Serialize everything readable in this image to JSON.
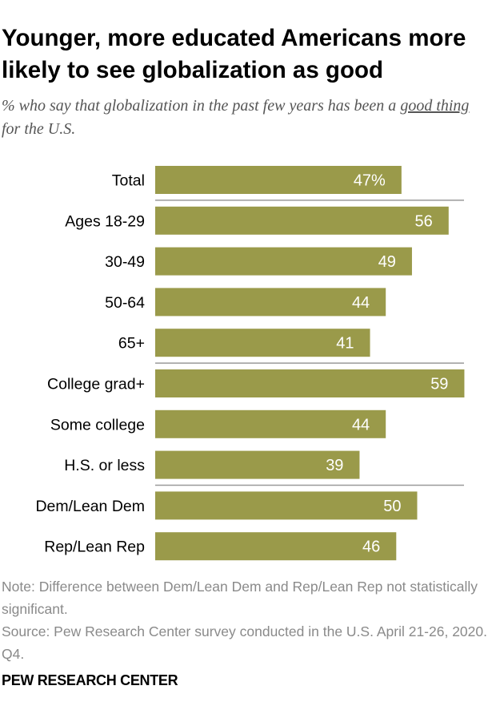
{
  "title": "Younger, more educated Americans more likely to see globalization as good",
  "subtitle": {
    "before": "% who say that globalization in the past few years has been a ",
    "emphasis": "good thing",
    "after": " for the U.S."
  },
  "note": "Note: Difference between Dem/Lean Dem and Rep/Lean Rep not statistically significant.",
  "source": "Source: Pew Research Center survey conducted in the U.S. April 21-26, 2020. Q4.",
  "footer": "PEW RESEARCH CENTER",
  "colors": {
    "bar": "#9a9a4a",
    "value_label": "#ffffff",
    "divider": "#9a9a9a"
  },
  "chart_data": {
    "type": "bar",
    "orientation": "horizontal",
    "categories": [
      "Total",
      "Ages 18-29",
      "30-49",
      "50-64",
      "65+",
      "College grad+",
      "Some college",
      "H.S. or less",
      "Dem/Lean Dem",
      "Rep/Lean Rep"
    ],
    "values": [
      47,
      56,
      49,
      44,
      41,
      59,
      44,
      39,
      50,
      46
    ],
    "data_labels": [
      "47%",
      "56",
      "49",
      "44",
      "41",
      "59",
      "44",
      "39",
      "50",
      "46"
    ],
    "groups_after": [
      0,
      4,
      7
    ],
    "xlim": [
      0,
      100
    ],
    "grid": false,
    "legend": "none"
  }
}
